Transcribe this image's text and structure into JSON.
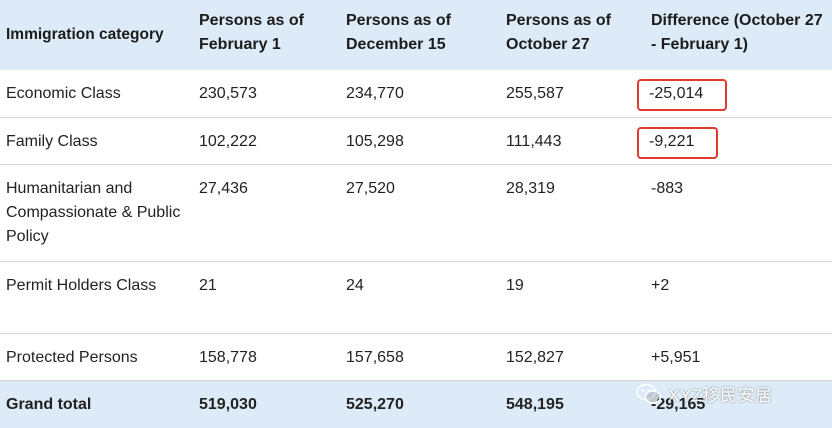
{
  "headers": [
    "Immigration category",
    "Persons as of February 1",
    "Persons as of December 15",
    "Persons as of October 27",
    "Difference (October 27 - February 1)"
  ],
  "rows": [
    {
      "category": "Economic Class",
      "feb1": "230,573",
      "dec15": "234,770",
      "oct27": "255,587",
      "diff": "-25,014"
    },
    {
      "category": "Family Class",
      "feb1": "102,222",
      "dec15": "105,298",
      "oct27": "111,443",
      "diff": "-9,221"
    },
    {
      "category": "Humanitarian and Compassionate & Public Policy",
      "feb1": "27,436",
      "dec15": "27,520",
      "oct27": "28,319",
      "diff": "-883"
    },
    {
      "category": "Permit Holders Class",
      "feb1": "21",
      "dec15": "24",
      "oct27": "19",
      "diff": "+2"
    },
    {
      "category": "Protected Persons",
      "feb1": "158,778",
      "dec15": "157,658",
      "oct27": "152,827",
      "diff": "+5,951"
    }
  ],
  "total": {
    "category": "Grand total",
    "feb1": "519,030",
    "dec15": "525,270",
    "oct27": "548,195",
    "diff": "-29,165"
  },
  "watermark": {
    "text": "XYZ移民安居",
    "icon": "wechat-icon"
  },
  "colors": {
    "header_bg": "#dcebf7",
    "highlight": "#e03a2f"
  }
}
